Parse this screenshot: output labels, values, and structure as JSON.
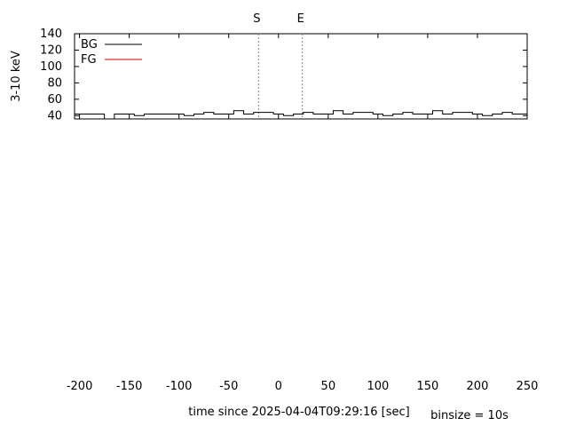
{
  "chart_data": {
    "type": "line",
    "step": true,
    "xlabel": "time since 2025-04-04T09:29:16 [sec]",
    "binsize_label": "binsize = 10s",
    "xlim": [
      -205,
      250
    ],
    "xticks": [
      -200,
      -150,
      -100,
      -50,
      0,
      50,
      100,
      150,
      200,
      250
    ],
    "xtick_labels": [
      "-200",
      "-150",
      "-100",
      "-50",
      "0",
      "50",
      "100",
      "150",
      "200",
      "250"
    ],
    "markers": [
      {
        "label": "S",
        "x": -20
      },
      {
        "label": "E",
        "x": 24
      }
    ],
    "x": [
      -205,
      -185,
      -175,
      -165,
      -155,
      -145,
      -135,
      -125,
      -115,
      -105,
      -95,
      -85,
      -75,
      -65,
      -55,
      -45,
      -35,
      -25,
      -15,
      -5,
      5,
      15,
      25,
      35,
      45,
      55,
      65,
      75,
      85,
      95,
      105,
      115,
      125,
      135,
      145,
      155,
      165,
      175,
      185,
      195,
      205,
      215,
      225,
      235,
      245
    ],
    "panels": [
      {
        "ylabel": "3-10 keV",
        "ylim": [
          36,
          140
        ],
        "yticks": [
          40,
          60,
          80,
          100,
          120,
          140
        ],
        "ytick_labels": [
          "40",
          "60",
          "80",
          "100",
          "120",
          "140"
        ],
        "legend": [
          {
            "name": "BG",
            "color": "#000000"
          },
          {
            "name": "FG",
            "color": "#cc0000"
          }
        ],
        "series": [
          {
            "name": "BG",
            "color": "#000000",
            "values": [
              42,
              42,
              34,
              42,
              42,
              40,
              42,
              42,
              42,
              42,
              40,
              42,
              44,
              42,
              42,
              46,
              42,
              44,
              44,
              42,
              40,
              42,
              44,
              42,
              42,
              46,
              42,
              44,
              44,
              42,
              40,
              42,
              44,
              42,
              42,
              46,
              42,
              44,
              44,
              42,
              40,
              42,
              44,
              42,
              42
            ]
          }
        ]
      }
    ]
  }
}
